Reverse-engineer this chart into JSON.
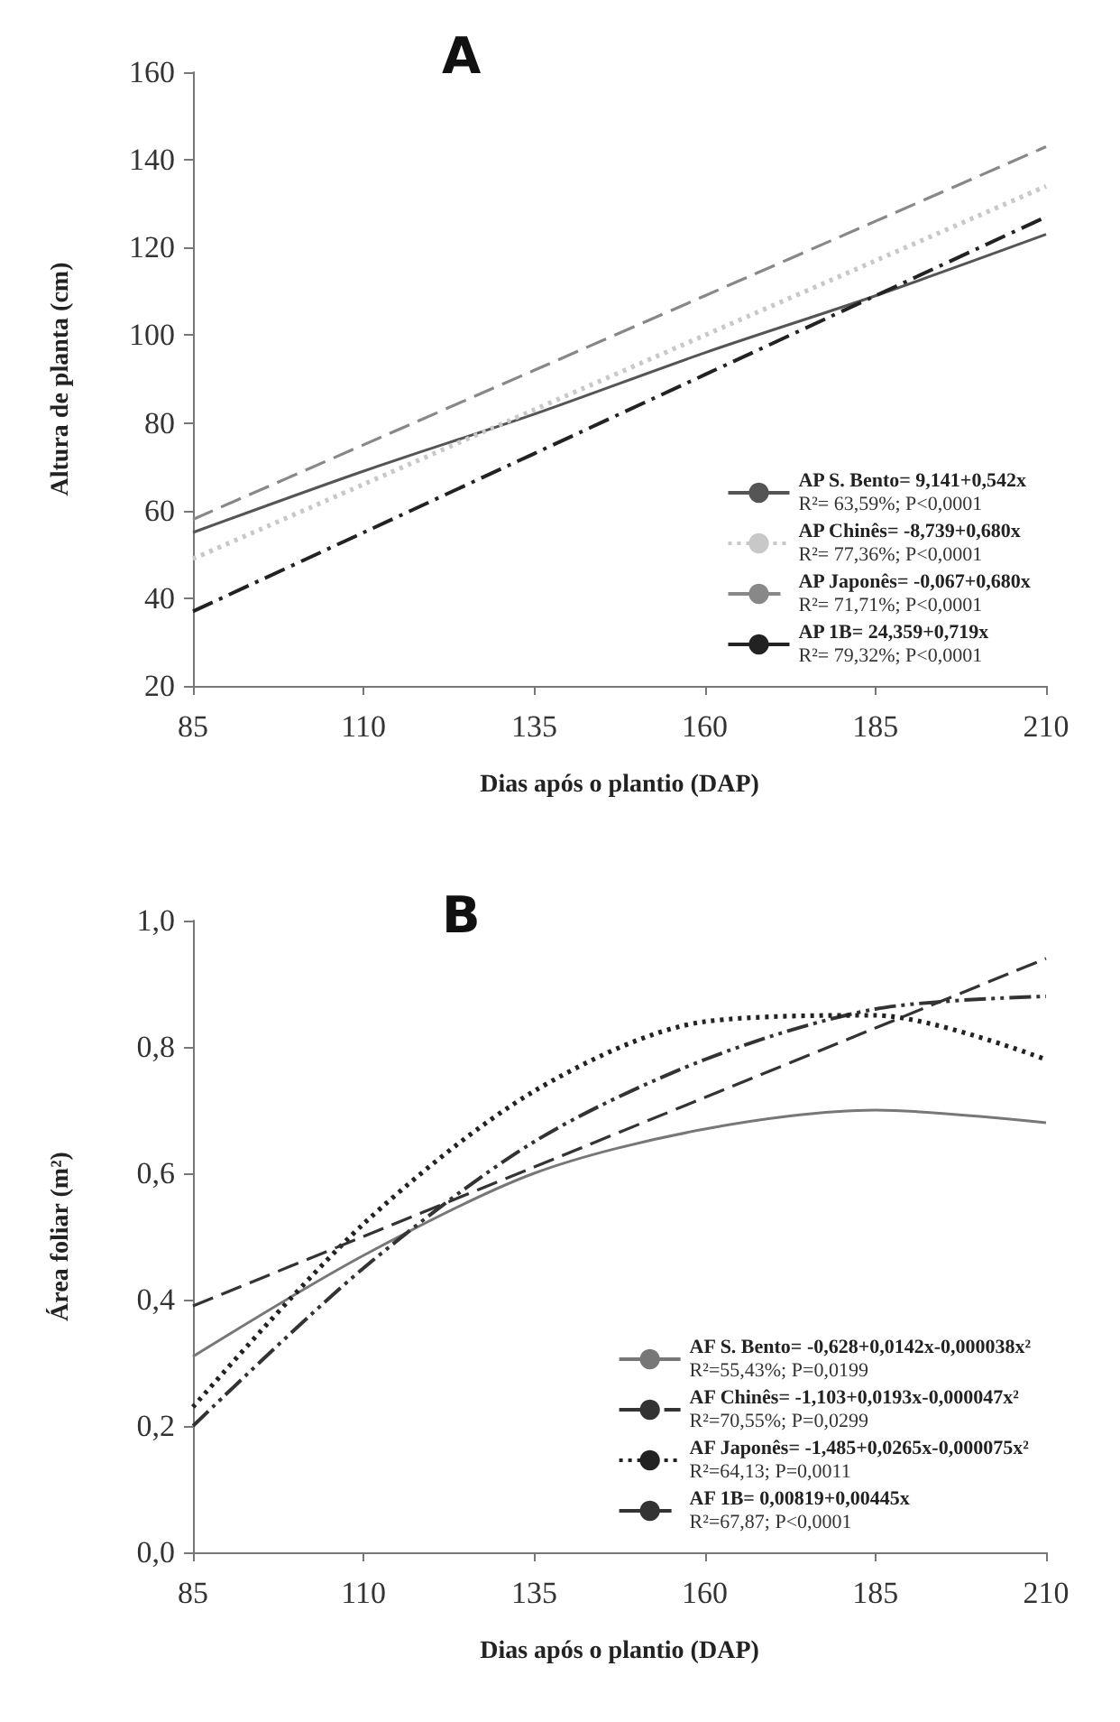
{
  "chart_data": [
    {
      "type": "line",
      "title": "A",
      "xlabel": "Dias após o plantio (DAP)",
      "ylabel": "Altura de planta (cm)",
      "x": [
        85,
        110,
        135,
        160,
        185,
        210
      ],
      "xlim": [
        85,
        210
      ],
      "xticks": [
        85,
        110,
        135,
        160,
        185,
        210
      ],
      "ylim": [
        20,
        160
      ],
      "yticks": [
        20,
        40,
        60,
        80,
        100,
        120,
        140,
        160
      ],
      "grid": false,
      "legend": "bottom right",
      "marker": "none",
      "series": [
        {
          "name": "AP S. Bento= 9,141+0,542x\nR²= 63,59%; P<0,0001",
          "color": "#555555",
          "line_style": "solid",
          "values": [
            55,
            69,
            82,
            96,
            109,
            123
          ]
        },
        {
          "name": "AP Chinês= -8,739+0,680x\nR²= 77,36%; P<0,0001",
          "color": "#c8c8c8",
          "line_style": "dotted",
          "values": [
            49,
            66,
            83,
            100,
            117,
            134
          ]
        },
        {
          "name": "AP Japonês= -0,067+0,680x\nR²= 71,71%; P<0,0001",
          "color": "#888888",
          "line_style": "dashed",
          "values": [
            58,
            75,
            92,
            109,
            126,
            143
          ]
        },
        {
          "name": "AP 1B= 24,359+0,719x\nR²= 79,32%; P<0,0001",
          "color": "#222222",
          "line_style": "dashdot",
          "values": [
            37,
            55,
            73,
            91,
            109,
            127
          ]
        }
      ]
    },
    {
      "type": "line",
      "title": "B",
      "xlabel": "Dias após o plantio (DAP)",
      "ylabel": "Área foliar (m²)",
      "x": [
        85,
        110,
        135,
        160,
        185,
        210
      ],
      "xlim": [
        85,
        210
      ],
      "xticks": [
        85,
        110,
        135,
        160,
        185,
        210
      ],
      "ylim": [
        0,
        1
      ],
      "yticks": [
        {
          "value": 0,
          "label": "0,0"
        },
        {
          "value": 0.2,
          "label": "0,2"
        },
        {
          "value": 0.4,
          "label": "0,4"
        },
        {
          "value": 0.6,
          "label": "0,6"
        },
        {
          "value": 0.8,
          "label": "0,8"
        },
        {
          "value": 1,
          "label": "1,0"
        }
      ],
      "grid": false,
      "legend": "bottom right",
      "marker": "none",
      "series": [
        {
          "name": "AF S. Bento= -0,628+0,0142x-0,000038x²\nR²=55,43%; P=0,0199",
          "color": "#777777",
          "line_style": "solid",
          "values": [
            0.31,
            0.47,
            0.6,
            0.67,
            0.7,
            0.68
          ]
        },
        {
          "name": "AF Chinês= -1,103+0,0193x-0,000047x²\nR²=70,55%; P=0,0299",
          "color": "#333333",
          "line_style": "dashdotdot",
          "values": [
            0.2,
            0.45,
            0.65,
            0.78,
            0.86,
            0.88
          ]
        },
        {
          "name": "AF Japonês= -1,485+0,0265x-0,000075x²\nR²=64,13; P=0,0011",
          "color": "#222222",
          "line_style": "dotted",
          "values": [
            0.23,
            0.52,
            0.73,
            0.84,
            0.85,
            0.78
          ]
        },
        {
          "name": "AF 1B= 0,00819+0,00445x\nR²=67,87; P<0,0001",
          "color": "#333333",
          "line_style": "dashed",
          "values": [
            0.39,
            0.5,
            0.61,
            0.72,
            0.83,
            0.94
          ]
        }
      ]
    }
  ]
}
